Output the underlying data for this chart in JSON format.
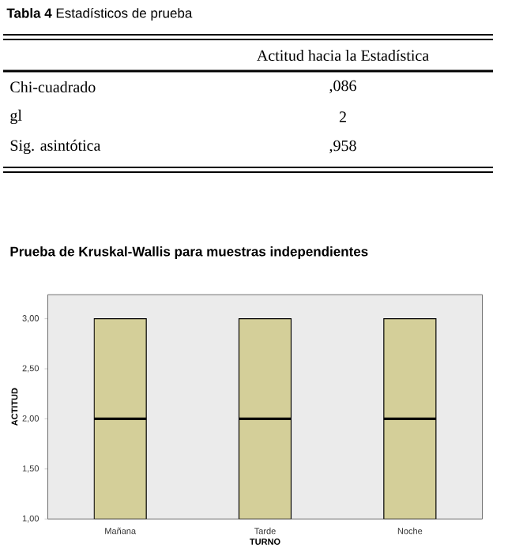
{
  "chart_data": {
    "type": "box",
    "title": "Prueba de Kruskal-Wallis para muestras independientes",
    "xlabel": "TURNO",
    "ylabel": "ACTITUD",
    "categories": [
      "Mañana",
      "Tarde",
      "Noche"
    ],
    "boxes": [
      {
        "low": 1,
        "q1": 1,
        "median": 2,
        "q3": 3,
        "high": 3
      },
      {
        "low": 1,
        "q1": 1,
        "median": 2,
        "q3": 3,
        "high": 3
      },
      {
        "low": 1,
        "q1": 1,
        "median": 2,
        "q3": 3,
        "high": 3
      }
    ],
    "color": "#d4cf99",
    "ylim": [
      1,
      3.24
    ],
    "yticks": [
      {
        "value": 1,
        "label": "1,00"
      },
      {
        "value": 1.5,
        "label": "1,50"
      },
      {
        "value": 2,
        "label": "2,00"
      },
      {
        "value": 2.5,
        "label": "2,50"
      },
      {
        "value": 3,
        "label": "3,00"
      }
    ],
    "annotations": [
      "**Tabla 4** Estadísticos de prueba",
      "Actitud hacia la Estadística",
      "Chi-cuadrado",
      ",086",
      "gl",
      "2",
      "Sig. asintótica",
      ",958"
    ]
  }
}
